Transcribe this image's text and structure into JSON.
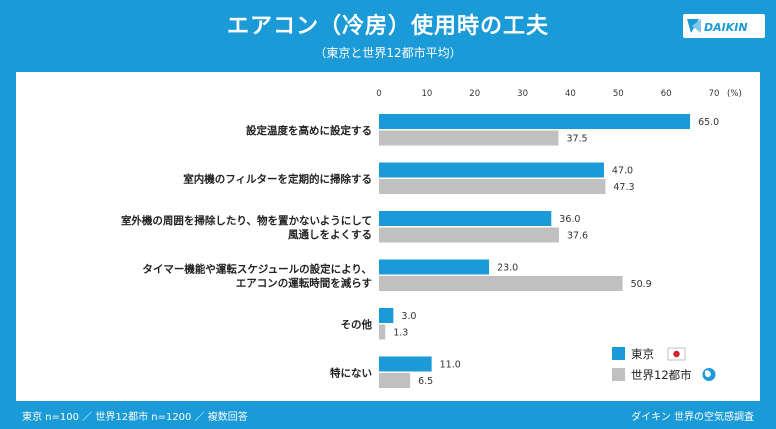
{
  "header": {
    "title": "エアコン（冷房）使用時の工夫",
    "subtitle": "（東京と世界12都市平均）",
    "logo_text": "DAIKIN"
  },
  "footer": {
    "left": "東京 n=100 ／ 世界12都市 n=1200 ／ 複数回答",
    "right": "ダイキン 世界の空気感調査"
  },
  "colors": {
    "background": "#1a9ad6",
    "tokyo": "#1a9ad6",
    "world": "#c0c0c0"
  },
  "chart_data": {
    "type": "bar",
    "orientation": "horizontal",
    "unit_label": "(%)",
    "xlim": [
      0,
      70
    ],
    "ticks": [
      0,
      10,
      20,
      30,
      40,
      50,
      60,
      70
    ],
    "grid": false,
    "legend_position": "bottom-right",
    "categories": [
      [
        "設定温度を高めに設定する"
      ],
      [
        "室内機のフィルターを定期的に掃除する"
      ],
      [
        "室外機の周囲を掃除したり、物を置かないようにして",
        "風通しをよくする"
      ],
      [
        "タイマー機能や運転スケジュールの設定により、",
        "エアコンの運転時間を減らす"
      ],
      [
        "その他"
      ],
      [
        "特にない"
      ]
    ],
    "series": [
      {
        "name": "東京",
        "values": [
          65.0,
          47.0,
          36.0,
          23.0,
          3.0,
          11.0
        ]
      },
      {
        "name": "世界12都市",
        "values": [
          37.5,
          47.3,
          37.6,
          50.9,
          1.3,
          6.5
        ]
      }
    ]
  }
}
